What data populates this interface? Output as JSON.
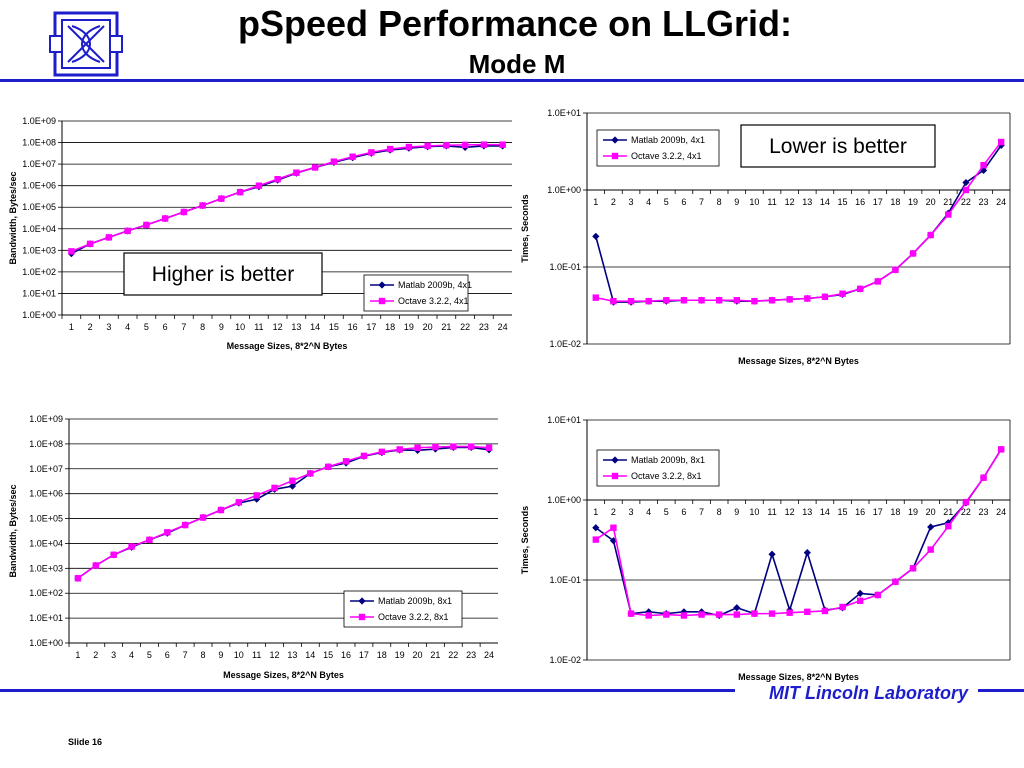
{
  "title": "pSpeed Performance on LLGrid:",
  "subtitle": "Mode M",
  "footer": "MIT Lincoln Laboratory",
  "slide_label": "Slide 16",
  "colors": {
    "brand_blue": "#1d1dcc",
    "matlab": "#000080",
    "octave": "#ff00ff"
  },
  "chart_data": [
    {
      "type": "line",
      "ylabel": "Bandwidth, Bytes/sec",
      "xlabel": "Message Sizes, 8*2^N Bytes",
      "log_y": true,
      "ylim": [
        1,
        1000000000
      ],
      "ytick_labels": [
        "1.0E+00",
        "1.0E+01",
        "1.0E+02",
        "1.0E+03",
        "1.0E+04",
        "1.0E+05",
        "1.0E+06",
        "1.0E+07",
        "1.0E+08",
        "1.0E+09"
      ],
      "x": [
        1,
        2,
        3,
        4,
        5,
        6,
        7,
        8,
        9,
        10,
        11,
        12,
        13,
        14,
        15,
        16,
        17,
        18,
        19,
        20,
        21,
        22,
        23,
        24
      ],
      "x_axis_at": "bottom",
      "grid": "horizontal",
      "legend": "bottom-right",
      "annotation": "Higher is better",
      "series": [
        {
          "name": "Matlab 2009b, 4x1",
          "marker": "diamond",
          "values": [
            700,
            2000,
            4000,
            8000,
            15000,
            30000,
            60000,
            120000,
            250000,
            500000,
            900000,
            1800000,
            3800000,
            7000000,
            12000000,
            20000000,
            32000000,
            45000000,
            55000000,
            65000000,
            70000000,
            60000000,
            70000000,
            70000000
          ]
        },
        {
          "name": "Octave 3.2.2, 4x1",
          "marker": "square",
          "values": [
            900,
            2000,
            4000,
            8000,
            15000,
            30000,
            60000,
            120000,
            250000,
            500000,
            1000000,
            2000000,
            4000000,
            7000000,
            13000000,
            22000000,
            35000000,
            50000000,
            62000000,
            70000000,
            75000000,
            78000000,
            80000000,
            80000000
          ]
        }
      ]
    },
    {
      "type": "line",
      "ylabel": "Times, Seconds",
      "xlabel": "Message Sizes, 8*2^N Bytes",
      "log_y": true,
      "ylim": [
        0.01,
        10
      ],
      "ytick_labels": [
        "1.0E-02",
        "1.0E-01",
        "1.0E+00",
        "1.0E+01"
      ],
      "x": [
        1,
        2,
        3,
        4,
        5,
        6,
        7,
        8,
        9,
        10,
        11,
        12,
        13,
        14,
        15,
        16,
        17,
        18,
        19,
        20,
        21,
        22,
        23,
        24
      ],
      "x_axis_at": 1,
      "grid": "horizontal",
      "legend": "top-left",
      "annotation": "Lower is better",
      "series": [
        {
          "name": "Matlab 2009b, 4x1",
          "marker": "diamond",
          "values": [
            0.25,
            0.035,
            0.035,
            0.036,
            0.036,
            0.037,
            0.037,
            0.037,
            0.036,
            0.036,
            0.037,
            0.038,
            0.039,
            0.041,
            0.044,
            0.052,
            0.065,
            0.092,
            0.15,
            0.26,
            0.5,
            1.25,
            1.8,
            3.8
          ]
        },
        {
          "name": "Octave 3.2.2, 4x1",
          "marker": "square",
          "values": [
            0.04,
            0.036,
            0.036,
            0.036,
            0.037,
            0.037,
            0.037,
            0.037,
            0.037,
            0.036,
            0.037,
            0.038,
            0.039,
            0.041,
            0.045,
            0.052,
            0.065,
            0.092,
            0.15,
            0.26,
            0.48,
            1.0,
            2.1,
            4.2
          ]
        }
      ]
    },
    {
      "type": "line",
      "ylabel": "Bandwidth, Bytes/sec",
      "xlabel": "Message Sizes, 8*2^N Bytes",
      "log_y": true,
      "ylim": [
        1,
        1000000000
      ],
      "ytick_labels": [
        "1.0E+00",
        "1.0E+01",
        "1.0E+02",
        "1.0E+03",
        "1.0E+04",
        "1.0E+05",
        "1.0E+06",
        "1.0E+07",
        "1.0E+08",
        "1.0E+09"
      ],
      "x": [
        1,
        2,
        3,
        4,
        5,
        6,
        7,
        8,
        9,
        10,
        11,
        12,
        13,
        14,
        15,
        16,
        17,
        18,
        19,
        20,
        21,
        22,
        23,
        24
      ],
      "x_axis_at": "bottom",
      "grid": "horizontal",
      "legend": "bottom-right",
      "series": [
        {
          "name": "Matlab 2009b, 8x1",
          "marker": "diamond",
          "values": [
            400,
            1300,
            3500,
            7000,
            14000,
            26000,
            55000,
            110000,
            220000,
            420000,
            600000,
            1500000,
            2000000,
            6500000,
            12000000,
            17000000,
            32000000,
            45000000,
            57000000,
            55000000,
            62000000,
            72000000,
            72000000,
            58000000
          ]
        },
        {
          "name": "Octave 3.2.2, 8x1",
          "marker": "square",
          "values": [
            400,
            1300,
            3500,
            7500,
            14000,
            28000,
            55000,
            110000,
            220000,
            450000,
            850000,
            1700000,
            3300000,
            6500000,
            12000000,
            20000000,
            33000000,
            48000000,
            60000000,
            70000000,
            75000000,
            78000000,
            78000000,
            70000000
          ]
        }
      ]
    },
    {
      "type": "line",
      "ylabel": "Times, Seconds",
      "xlabel": "Message Sizes, 8*2^N Bytes",
      "log_y": true,
      "ylim": [
        0.01,
        10
      ],
      "ytick_labels": [
        "1.0E-02",
        "1.0E-01",
        "1.0E+00",
        "1.0E+01"
      ],
      "x": [
        1,
        2,
        3,
        4,
        5,
        6,
        7,
        8,
        9,
        10,
        11,
        12,
        13,
        14,
        15,
        16,
        17,
        18,
        19,
        20,
        21,
        22,
        23,
        24
      ],
      "x_axis_at": 1,
      "grid": "horizontal",
      "legend": "top-left",
      "series": [
        {
          "name": "Matlab 2009b, 8x1",
          "marker": "diamond",
          "values": [
            0.45,
            0.31,
            0.038,
            0.04,
            0.038,
            0.04,
            0.04,
            0.036,
            0.045,
            0.038,
            0.21,
            0.042,
            0.22,
            0.042,
            0.045,
            0.068,
            0.065,
            0.095,
            0.14,
            0.46,
            0.52,
            0.92,
            1.9,
            4.3
          ]
        },
        {
          "name": "Octave 3.2.2, 8x1",
          "marker": "square",
          "values": [
            0.32,
            0.45,
            0.038,
            0.036,
            0.037,
            0.036,
            0.037,
            0.037,
            0.037,
            0.038,
            0.038,
            0.039,
            0.04,
            0.041,
            0.046,
            0.055,
            0.065,
            0.095,
            0.14,
            0.24,
            0.47,
            0.94,
            1.9,
            4.3
          ]
        }
      ]
    }
  ]
}
